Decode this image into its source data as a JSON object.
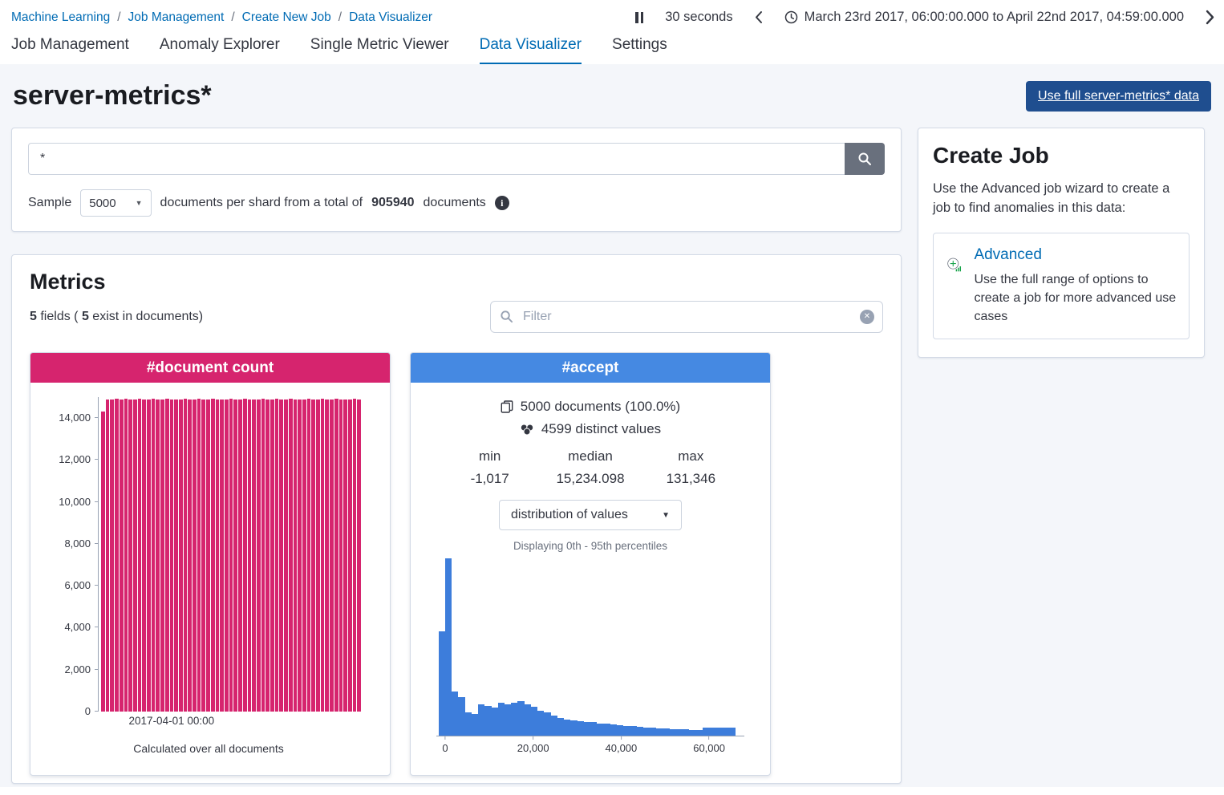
{
  "breadcrumb": {
    "items": [
      "Machine Learning",
      "Job Management",
      "Create New Job",
      "Data Visualizer"
    ],
    "separator": "/"
  },
  "timepicker": {
    "refresh_interval": "30 seconds",
    "range": "March 23rd 2017, 06:00:00.000 to April 22nd 2017, 04:59:00.000"
  },
  "tabs": [
    {
      "label": "Job Management"
    },
    {
      "label": "Anomaly Explorer"
    },
    {
      "label": "Single Metric Viewer"
    },
    {
      "label": "Data Visualizer"
    },
    {
      "label": "Settings"
    }
  ],
  "page": {
    "title": "server-metrics*",
    "full_data_button": "Use full server-metrics* data"
  },
  "search": {
    "query": "*",
    "sample_label": "Sample",
    "sample_size": "5000",
    "text_before_total": "documents per shard from a total of",
    "total_documents": "905940",
    "text_after_total": "documents"
  },
  "metrics": {
    "heading": "Metrics",
    "fields_count": "5",
    "fields_text": "fields (",
    "exist_count": "5",
    "exist_text": "exist in documents)",
    "filter_placeholder": "Filter"
  },
  "document_count_card": {
    "title": "#document count",
    "caption": "Calculated over all documents"
  },
  "accept_card": {
    "title": "#accept",
    "documents_summary": "5000 documents (100.0%)",
    "distinct_values": "4599 distinct values",
    "min_label": "min",
    "median_label": "median",
    "max_label": "max",
    "min_value": "-1,017",
    "median_value": "15,234.098",
    "max_value": "131,346",
    "distribution_dropdown": "distribution of values",
    "percentiles_note": "Displaying 0th - 95th percentiles"
  },
  "create_job": {
    "heading": "Create Job",
    "intro": "Use the Advanced job wizard to create a job to find anomalies in this data:",
    "advanced_label": "Advanced",
    "advanced_description": "Use the full range of options to create a job for more advanced use cases"
  },
  "colors": {
    "link_blue": "#006bb4",
    "document_count_pink": "#d6246e",
    "accept_header_blue": "#4589e2",
    "histogram_blue": "#3d7ddb",
    "full_data_button_navy": "#1f4e8f"
  },
  "chart_data": [
    {
      "name": "document-count",
      "type": "bar",
      "title": "#document count",
      "xlabel": "2017-04-01 00:00",
      "ylabel": "",
      "ylim": [
        0,
        15000
      ],
      "y_ticks": [
        {
          "value": 0,
          "label": "0"
        },
        {
          "value": 2000,
          "label": "2,000"
        },
        {
          "value": 4000,
          "label": "4,000"
        },
        {
          "value": 6000,
          "label": "6,000"
        },
        {
          "value": 8000,
          "label": "8,000"
        },
        {
          "value": 10000,
          "label": "10,000"
        },
        {
          "value": 12000,
          "label": "12,000"
        },
        {
          "value": 14000,
          "label": "14,000"
        }
      ],
      "values": [
        14300,
        14900,
        14880,
        14920,
        14890,
        14910,
        14900,
        14870,
        14930,
        14900,
        14890,
        14910,
        14900,
        14880,
        14920,
        14900,
        14890,
        14900,
        14910,
        14880,
        14900,
        14920,
        14890,
        14900,
        14910,
        14900,
        14880,
        14900,
        14920,
        14900,
        14890,
        14910,
        14900,
        14880,
        14900,
        14920,
        14890,
        14900,
        14910,
        14900,
        14880,
        14920,
        14900,
        14890,
        14900,
        14910,
        14880,
        14900,
        14920,
        14900,
        14890,
        14910,
        14900,
        14880,
        14900,
        14920,
        14900
      ]
    },
    {
      "name": "accept-distribution",
      "type": "histogram",
      "title": "#accept distribution of values (0th - 95th percentiles)",
      "xlim": [
        -2000,
        68000
      ],
      "bin_start": -1500,
      "bin_width": 1500,
      "x_ticks": [
        {
          "value": 0,
          "label": "0"
        },
        {
          "value": 20000,
          "label": "20,000"
        },
        {
          "value": 40000,
          "label": "40,000"
        },
        {
          "value": 60000,
          "label": "60,000"
        }
      ],
      "values": [
        470,
        800,
        200,
        175,
        105,
        98,
        140,
        133,
        126,
        147,
        140,
        150,
        154,
        143,
        130,
        112,
        105,
        91,
        80,
        74,
        70,
        66,
        63,
        60,
        56,
        53,
        49,
        46,
        42,
        42,
        39,
        35,
        35,
        32,
        32,
        28,
        28,
        28,
        25,
        25,
        35,
        35,
        35,
        35,
        35
      ]
    }
  ]
}
